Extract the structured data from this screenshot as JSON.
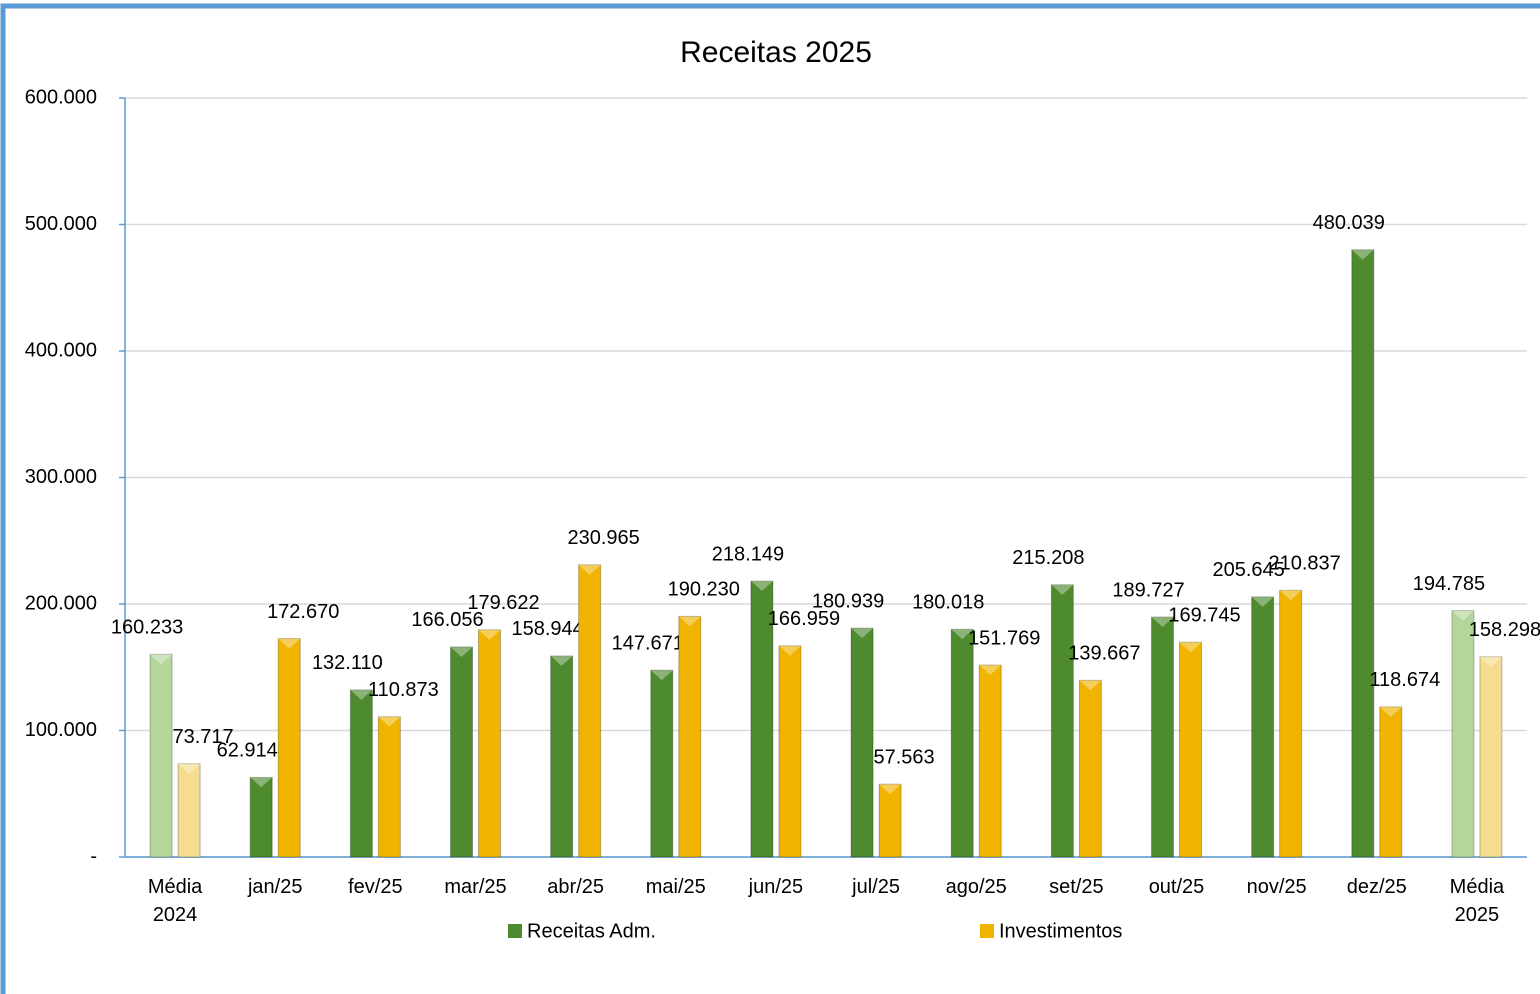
{
  "chart_data": {
    "type": "bar",
    "title": "Receitas  2025",
    "categories": [
      "Média 2024",
      "jan/25",
      "fev/25",
      "mar/25",
      "abr/25",
      "mai/25",
      "jun/25",
      "jul/25",
      "ago/25",
      "set/25",
      "out/25",
      "nov/25",
      "dez/25",
      "Média 2025"
    ],
    "series": [
      {
        "name": "Receitas Adm.",
        "color": "#4e8a2e",
        "colors": [
          "#b5d69b",
          "#4e8a2e",
          "#4e8a2e",
          "#4e8a2e",
          "#4e8a2e",
          "#4e8a2e",
          "#4e8a2e",
          "#4e8a2e",
          "#4e8a2e",
          "#4e8a2e",
          "#4e8a2e",
          "#4e8a2e",
          "#4e8a2e",
          "#b5d69b"
        ],
        "values": [
          160233,
          62914,
          132110,
          166056,
          158944,
          147671,
          218149,
          180939,
          180018,
          215208,
          189727,
          205645,
          480039,
          194785
        ],
        "value_labels": [
          "160.233",
          "62.914",
          "132.110",
          "166.056",
          "158.944",
          "147.671",
          "218.149",
          "180.939",
          "180.018",
          "215.208",
          "189.727",
          "205.645",
          "480.039",
          "194.785"
        ]
      },
      {
        "name": "Investimentos",
        "color": "#f0b400",
        "colors": [
          "#f5dc8f",
          "#f0b400",
          "#f0b400",
          "#f0b400",
          "#f0b400",
          "#f0b400",
          "#f0b400",
          "#f0b400",
          "#f0b400",
          "#f0b400",
          "#f0b400",
          "#f0b400",
          "#f0b400",
          "#f5dc8f"
        ],
        "values": [
          73717,
          172670,
          110873,
          179622,
          230965,
          190230,
          166959,
          57563,
          151769,
          139667,
          169745,
          210837,
          118674,
          158298
        ],
        "value_labels": [
          "73.717",
          "172.670",
          "110.873",
          "179.622",
          "230.965",
          "190.230",
          "166.959",
          "57.563",
          "151.769",
          "139.667",
          "169.745",
          "210.837",
          "118.674",
          "158.298"
        ]
      }
    ],
    "ylim": [
      0,
      600000
    ],
    "yticks": [
      {
        "value": 0,
        "label": "-"
      },
      {
        "value": 100000,
        "label": "100.000"
      },
      {
        "value": 200000,
        "label": "200.000"
      },
      {
        "value": 300000,
        "label": "300.000"
      },
      {
        "value": 400000,
        "label": "400.000"
      },
      {
        "value": 500000,
        "label": "500.000"
      },
      {
        "value": 600000,
        "label": "600.000"
      }
    ],
    "grid": true
  }
}
